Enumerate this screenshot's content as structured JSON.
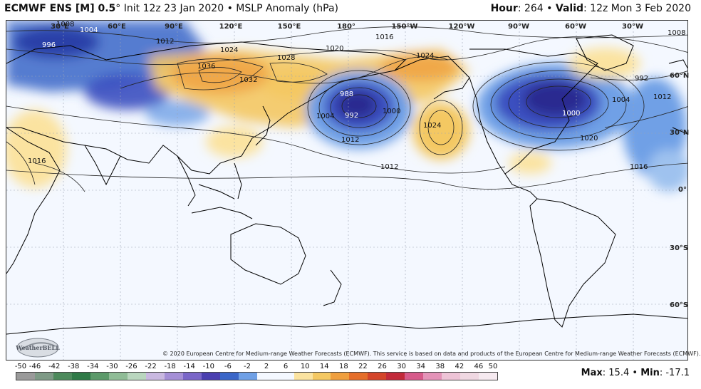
{
  "header": {
    "model": "ECMWF ENS [M] 0.5",
    "degree": "°",
    "init": "Init 12z 23 Jan 2020",
    "bullet": "•",
    "field": "MSLP Anomaly (hPa)",
    "hour_label": "Hour",
    "hour_value": ": 264",
    "valid_label": "Valid",
    "valid_value": ": 12z Mon 3 Feb 2020"
  },
  "lon_labels": [
    "30°E",
    "60°E",
    "90°E",
    "120°E",
    "150°E",
    "180°",
    "150°W",
    "120°W",
    "90°W",
    "60°W",
    "30°W"
  ],
  "lat_labels": [
    "60°N",
    "30°N",
    "0°",
    "30°S",
    "60°S"
  ],
  "isobar_labels": [
    "1008",
    "1004",
    "996",
    "1012",
    "1024",
    "1036",
    "1028",
    "1032",
    "1020",
    "1016",
    "988",
    "992",
    "1000",
    "1004",
    "1012",
    "1024",
    "992",
    "1004",
    "1000",
    "1020",
    "1012",
    "1016",
    "1008",
    "1012",
    "1024",
    "1016"
  ],
  "copyright": "© 2020 European Centre for Medium-range Weather Forecasts (ECMWF). This service is based on data and products of the European Centre for Medium-range Weather Forecasts (ECMWF).",
  "logo_text": "WeatherBELL",
  "colorbar": {
    "ticks": [
      "-50",
      "-46",
      "-42",
      "-38",
      "-34",
      "-30",
      "-26",
      "-22",
      "-18",
      "-14",
      "-10",
      "-6",
      "-2",
      "2",
      "6",
      "10",
      "14",
      "18",
      "22",
      "26",
      "30",
      "34",
      "38",
      "42",
      "46",
      "50"
    ],
    "colors": [
      "#9a9a9a",
      "#7e9a86",
      "#4d8a5c",
      "#2f7a47",
      "#5c9a6a",
      "#8fbc96",
      "#b9d6be",
      "#c9b8e0",
      "#a58fd6",
      "#7a66c8",
      "#4a3fb0",
      "#3a66c8",
      "#6fa0e6",
      "#f4f8ff",
      "#f4f8ff",
      "#fbe3a0",
      "#f4c862",
      "#ef9f3f",
      "#e56e2a",
      "#d4452a",
      "#c22a3a",
      "#d65a8a",
      "#e493b8",
      "#eec3d6",
      "#f0d8e2",
      "#f6eaf0"
    ]
  },
  "stats": {
    "max_label": "Max",
    "max_value": ": 15.4",
    "sep": "•",
    "min_label": "Min",
    "min_value": ": -17.1"
  }
}
